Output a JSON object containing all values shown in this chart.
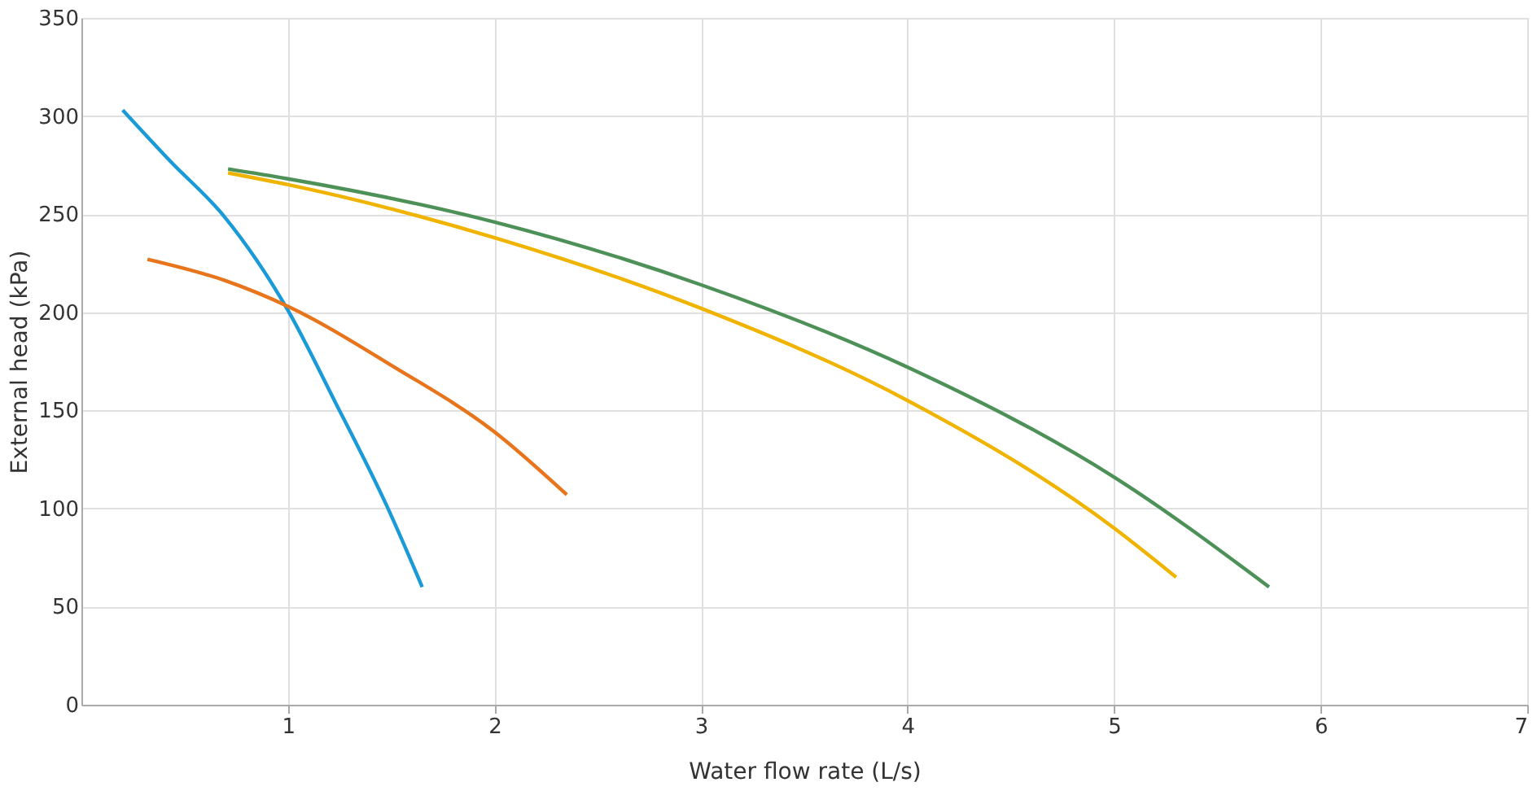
{
  "chart_data": {
    "type": "line",
    "xlabel": "Water flow rate (L/s)",
    "ylabel": "External head (kPa)",
    "xlim": [
      0,
      7
    ],
    "xticks": [
      1,
      2,
      3,
      4,
      5,
      6,
      7
    ],
    "ylim": [
      0,
      350
    ],
    "yticks": [
      0,
      50,
      100,
      150,
      200,
      250,
      300,
      350
    ],
    "grid": true,
    "marker": "none",
    "line_style": "solid",
    "series": [
      {
        "color": "#1a9ad6",
        "x": [
          0.2,
          0.43,
          0.69,
          1.0,
          1.23,
          1.48,
          1.65
        ],
        "values": [
          303,
          277,
          249,
          201,
          154,
          101,
          60
        ]
      },
      {
        "color": "#e8741b",
        "x": [
          0.32,
          0.7,
          1.0,
          1.5,
          2.0,
          2.35
        ],
        "values": [
          227,
          216,
          203,
          173,
          139,
          107
        ]
      },
      {
        "color": "#f0b400",
        "x": [
          0.71,
          1,
          2,
          3,
          4,
          5,
          5.3
        ],
        "values": [
          271,
          265,
          238,
          202,
          155,
          90,
          65
        ]
      },
      {
        "color": "#4e9158",
        "x": [
          0.71,
          1,
          2,
          3,
          4,
          5,
          5.75
        ],
        "values": [
          273,
          268,
          246,
          214,
          172,
          116,
          60
        ]
      }
    ]
  }
}
